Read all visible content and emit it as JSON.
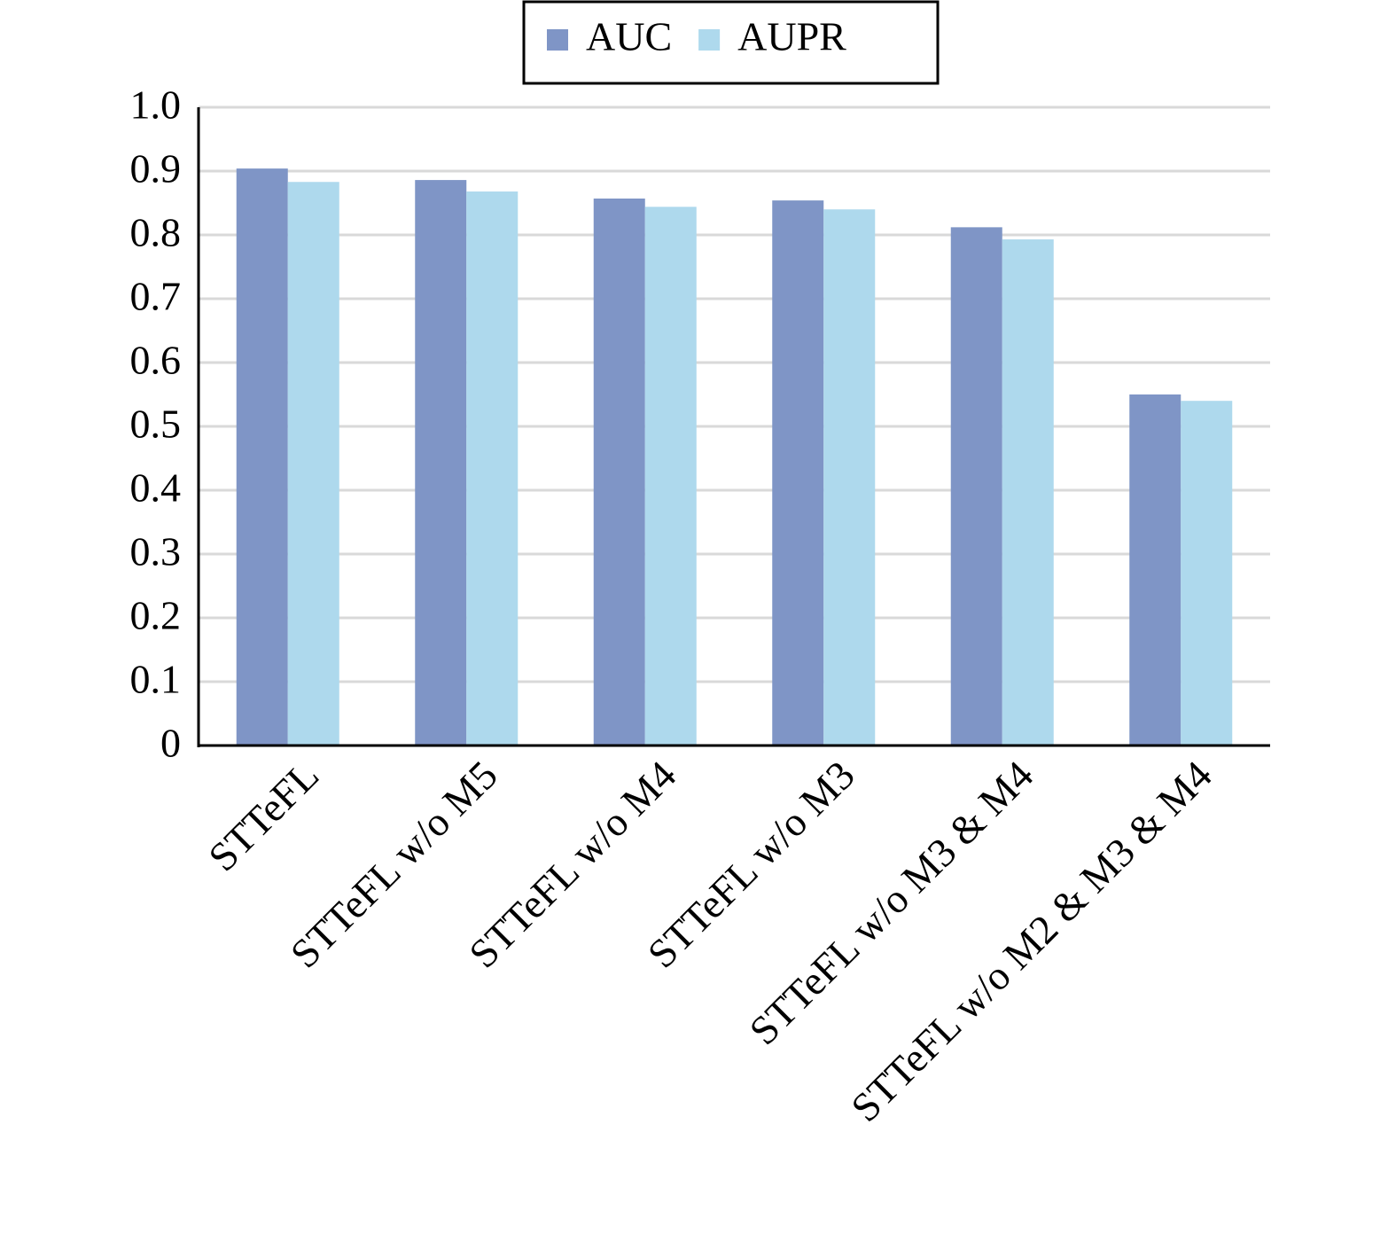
{
  "chart_data": {
    "type": "bar",
    "categories": [
      "STTeFL",
      "STTeFL w/o M5",
      "STTeFL w/o M4",
      "STTeFL w/o M3",
      "STTeFL w/o M3 & M4",
      "STTeFL w/o M2 & M3 & M4"
    ],
    "series": [
      {
        "name": "AUC",
        "color": "#7f95c6",
        "values": [
          0.904,
          0.886,
          0.857,
          0.854,
          0.812,
          0.55
        ]
      },
      {
        "name": "AUPR",
        "color": "#aed9ed",
        "values": [
          0.883,
          0.868,
          0.844,
          0.84,
          0.793,
          0.54
        ]
      }
    ],
    "ylim": [
      0,
      1
    ],
    "yticks": [
      0,
      0.1,
      0.2,
      0.3,
      0.4,
      0.5,
      0.6,
      0.7,
      0.8,
      0.9,
      {
        "value": 1,
        "label": "1.0"
      }
    ],
    "grid": true,
    "legend": "top"
  }
}
